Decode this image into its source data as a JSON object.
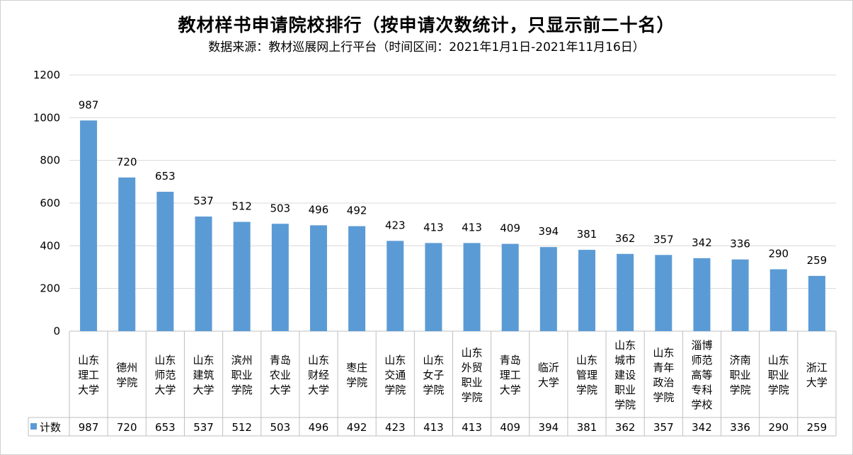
{
  "title": "教材样书申请院校排行（按申请次数统计，只显示前二十名）",
  "subtitle": "数据来源：教材巡展网上行平台（时间区间：2021年1月1日-2021年11月16日）",
  "chart_data": {
    "type": "bar",
    "categories": [
      [
        "山东",
        "理工",
        "大学"
      ],
      [
        "德州",
        "学院"
      ],
      [
        "山东",
        "师范",
        "大学"
      ],
      [
        "山东",
        "建筑",
        "大学"
      ],
      [
        "滨州",
        "职业",
        "学院"
      ],
      [
        "青岛",
        "农业",
        "大学"
      ],
      [
        "山东",
        "财经",
        "大学"
      ],
      [
        "枣庄",
        "学院"
      ],
      [
        "山东",
        "交通",
        "学院"
      ],
      [
        "山东",
        "女子",
        "学院"
      ],
      [
        "山东",
        "外贸",
        "职业",
        "学院"
      ],
      [
        "青岛",
        "理工",
        "大学"
      ],
      [
        "临沂",
        "大学"
      ],
      [
        "山东",
        "管理",
        "学院"
      ],
      [
        "山东",
        "城市",
        "建设",
        "职业",
        "学院"
      ],
      [
        "山东",
        "青年",
        "政治",
        "学院"
      ],
      [
        "淄博",
        "师范",
        "高等",
        "专科",
        "学校"
      ],
      [
        "济南",
        "职业",
        "学院"
      ],
      [
        "山东",
        "职业",
        "学院"
      ],
      [
        "浙江",
        "大学"
      ]
    ],
    "series": [
      {
        "name": "计数",
        "values": [
          987,
          720,
          653,
          537,
          512,
          503,
          496,
          492,
          423,
          413,
          413,
          409,
          394,
          381,
          362,
          357,
          342,
          336,
          290,
          259
        ],
        "color": "#5b9bd5"
      }
    ],
    "yticks": [
      "0",
      "200",
      "400",
      "600",
      "800",
      "1000",
      "1200"
    ],
    "ylim": [
      0,
      1200
    ],
    "grid": true,
    "legend": "data-table-left",
    "gridColor": "#d9d9d9",
    "tableColor": "#bfbfbf"
  }
}
